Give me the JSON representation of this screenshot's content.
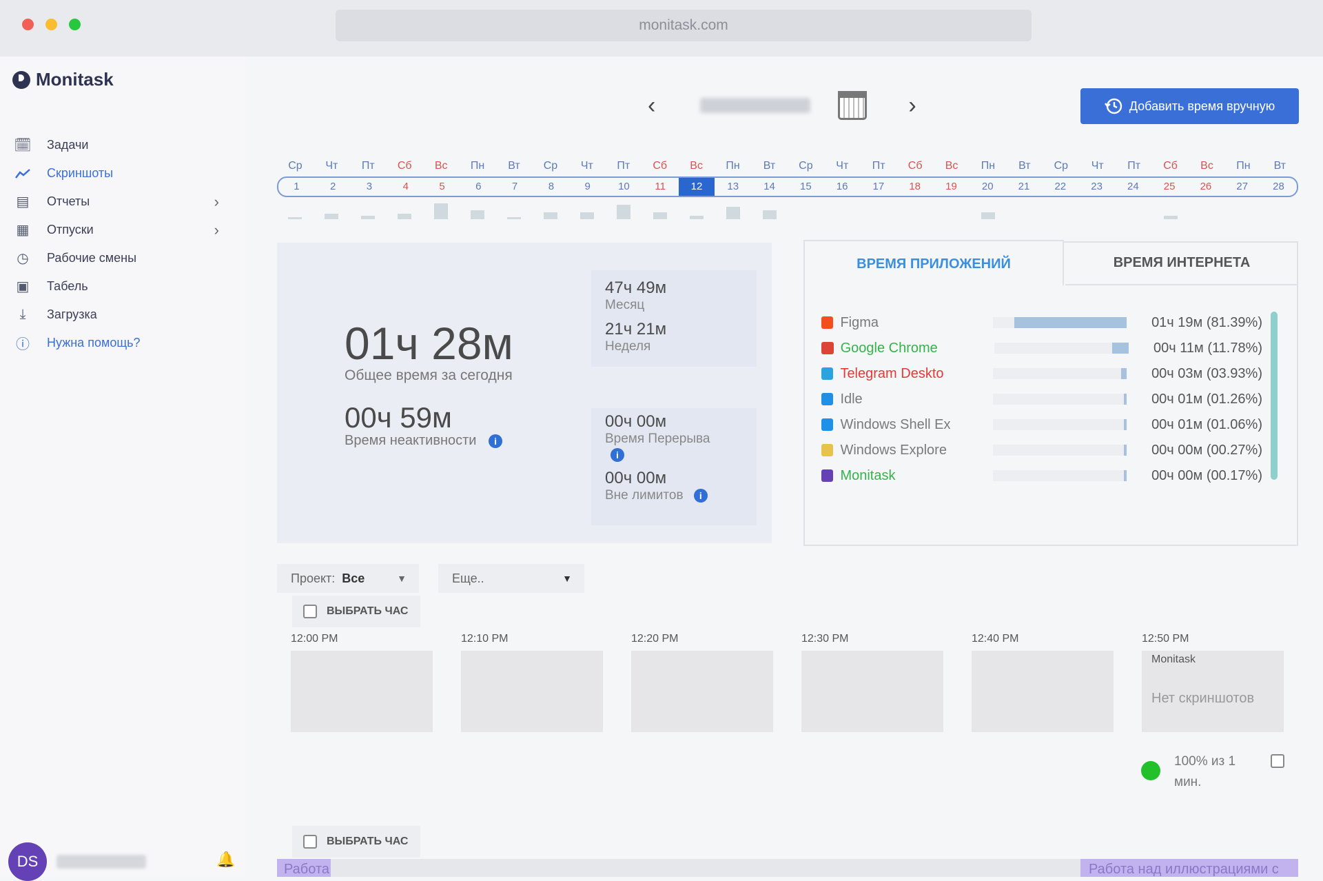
{
  "browser": {
    "url": "monitask.com"
  },
  "app": {
    "name": "Monitask"
  },
  "sidebar": {
    "items": [
      {
        "label": "Задачи",
        "icon": "calendar-check-icon"
      },
      {
        "label": "Скриншоты",
        "icon": "chart-line-icon",
        "active": true
      },
      {
        "label": "Отчеты",
        "icon": "report-icon",
        "expandable": true
      },
      {
        "label": "Отпуски",
        "icon": "calendar-icon",
        "expandable": true
      },
      {
        "label": "Рабочие смены",
        "icon": "clock-icon"
      },
      {
        "label": "Табель",
        "icon": "timesheet-icon"
      },
      {
        "label": "Загрузка",
        "icon": "download-icon"
      },
      {
        "label": "Нужна помощь?",
        "icon": "help-icon"
      }
    ],
    "user_initials": "DS"
  },
  "toolbar": {
    "add_time_label": "Добавить время вручную"
  },
  "calendar": {
    "weekdays": [
      "Ср",
      "Чт",
      "Пт",
      "Сб",
      "Вс",
      "Пн",
      "Вт",
      "Ср",
      "Чт",
      "Пт",
      "Сб",
      "Вс",
      "Пн",
      "Вт",
      "Ср",
      "Чт",
      "Пт",
      "Сб",
      "Вс",
      "Пн",
      "Вт",
      "Ср",
      "Чт",
      "Пт",
      "Сб",
      "Вс",
      "Пн",
      "Вт"
    ],
    "days": [
      "1",
      "2",
      "3",
      "4",
      "5",
      "6",
      "7",
      "8",
      "9",
      "10",
      "11",
      "12",
      "13",
      "14",
      "15",
      "16",
      "17",
      "18",
      "19",
      "20",
      "21",
      "22",
      "23",
      "24",
      "25",
      "26",
      "27",
      "28"
    ],
    "weekend_indices": [
      3,
      4,
      10,
      11,
      17,
      18,
      24,
      25
    ],
    "selected_day": "12",
    "activity_levels": [
      0.1,
      0.3,
      0.2,
      0.3,
      0.9,
      0.5,
      0.1,
      0.4,
      0.4,
      0.8,
      0.4,
      0.2,
      0.7,
      0.5,
      0,
      0,
      0,
      0,
      0,
      0.4,
      0,
      0,
      0,
      0,
      0.2,
      0,
      0,
      0
    ]
  },
  "stats": {
    "today_total": "01ч 28м",
    "today_total_label": "Общее время за сегодня",
    "idle": "00ч 59м",
    "idle_label": "Время неактивности",
    "month": "47ч 49м",
    "month_label": "Месяц",
    "week": "21ч 21м",
    "week_label": "Неделя",
    "break": "00ч 00м",
    "break_label": "Время Перерыва",
    "over_limit": "00ч 00м",
    "over_limit_label": "Вне лимитов"
  },
  "apps_panel": {
    "tab_apps": "ВРЕМЯ ПРИЛОЖЕНИЙ",
    "tab_web": "ВРЕМЯ ИНТЕРНЕТА",
    "apps": [
      {
        "name": "Figma",
        "duration": "01ч 19м (81.39%)",
        "fraction": 0.8139,
        "color": "#7a7a7a",
        "icon_color": "#f24e1e"
      },
      {
        "name": "Google Chrome",
        "duration": "00ч 11м (11.78%)",
        "fraction": 0.1178,
        "color": "#35b34a",
        "icon_color": "#db4437"
      },
      {
        "name": "Telegram Deskto",
        "duration": "00ч 03м (03.93%)",
        "fraction": 0.0393,
        "color": "#e53935",
        "icon_color": "#2aa3df"
      },
      {
        "name": "Idle",
        "duration": "00ч 01м (01.26%)",
        "fraction": 0.0126,
        "color": "#7a7a7a",
        "icon_color": "#1e90e8"
      },
      {
        "name": "Windows Shell Ex",
        "duration": "00ч 01м (01.06%)",
        "fraction": 0.0106,
        "color": "#7a7a7a",
        "icon_color": "#1e90e8"
      },
      {
        "name": "Windows Explore",
        "duration": "00ч 00м (00.27%)",
        "fraction": 0.0027,
        "color": "#7a7a7a",
        "icon_color": "#e6c34a"
      },
      {
        "name": "Monitask",
        "duration": "00ч 00м (00.17%)",
        "fraction": 0.0017,
        "color": "#35b34a",
        "icon_color": "#6541b6"
      }
    ]
  },
  "filters": {
    "project_label": "Проект:",
    "project_value": "Все",
    "more_label": "Еще.."
  },
  "timeline": {
    "select_hour_label": "ВЫБРАТЬ ЧАС",
    "slots": [
      "12:00 PM",
      "12:10 PM",
      "12:20 PM",
      "12:30 PM",
      "12:40 PM",
      "12:50 PM"
    ],
    "last_slot_app": "Monitask",
    "last_slot_empty": "Нет скриншотов",
    "activity_text": "100% из 1 мин."
  },
  "bottom": {
    "left_task": "Работа",
    "right_task": "Работа над иллюстрациями с"
  }
}
